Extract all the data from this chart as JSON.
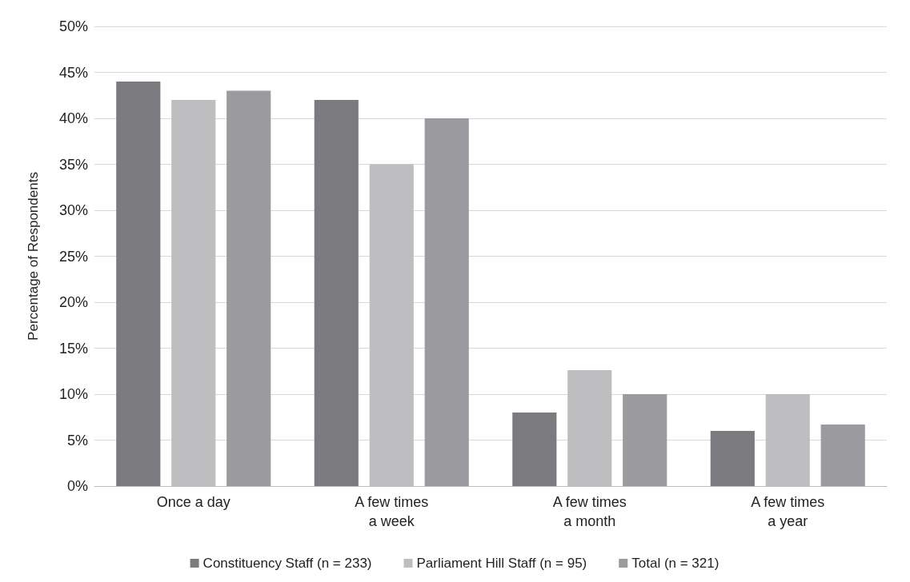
{
  "chart_data": {
    "type": "bar",
    "ylabel": "Percentage of Respondents",
    "categories": [
      "Once a day",
      "A few times\na week",
      "A few times\na month",
      "A few times\na year"
    ],
    "series": [
      {
        "name": "Constituency Staff (n = 233)",
        "color": "#7b7b7f",
        "values": [
          44,
          42,
          8,
          6
        ]
      },
      {
        "name": "Parliament Hill Staff (n = 95)",
        "color": "#bebec1",
        "values": [
          42,
          35,
          12.6,
          10
        ]
      },
      {
        "name": "Total (n = 321)",
        "color": "#9b9b9f",
        "values": [
          43,
          40,
          10,
          6.7
        ]
      }
    ],
    "ylim": [
      0,
      50
    ],
    "yticks": [
      {
        "value": 0,
        "label": "0%"
      },
      {
        "value": 5,
        "label": "5%"
      },
      {
        "value": 10,
        "label": "10%"
      },
      {
        "value": 15,
        "label": "15%"
      },
      {
        "value": 20,
        "label": "20%"
      },
      {
        "value": 25,
        "label": "25%"
      },
      {
        "value": 30,
        "label": "30%"
      },
      {
        "value": 35,
        "label": "35%"
      },
      {
        "value": 40,
        "label": "40%"
      },
      {
        "value": 45,
        "label": "45%"
      },
      {
        "value": 50,
        "label": "50%"
      }
    ],
    "grid": "y",
    "legend": "bottom"
  }
}
